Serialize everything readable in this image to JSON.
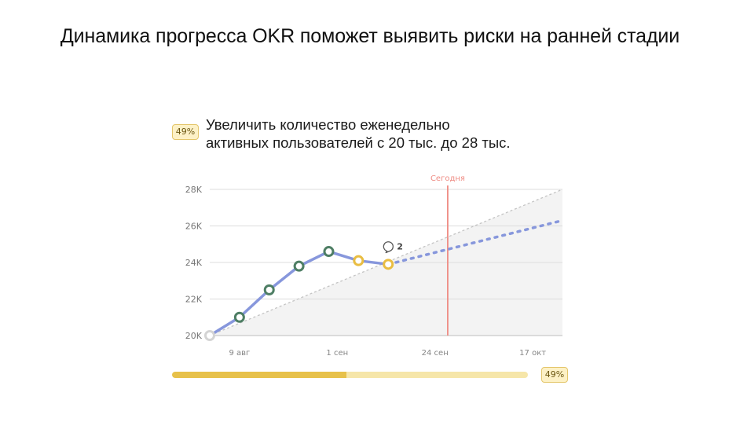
{
  "page_title": "Динамика прогресса OKR поможет выявить риски на ранней стадии",
  "okr": {
    "badge_top": "49%",
    "title_line1": "Увеличить количество еженедельно",
    "title_line2": "активных пользователей с 20 тыс. до 28 тыс.",
    "progress": {
      "fraction": 0.49,
      "label": "49%"
    }
  },
  "colors": {
    "actual_line": "#8797dc",
    "checkpoint_green": "#4e7e64",
    "checkpoint_yellow": "#e9bd42",
    "start_point": "#d4d4d4",
    "today_line": "#ef8c84",
    "plan_line": "#c4c4c4",
    "plan_area": "#f3f3f3",
    "grid": "#dcdcdc"
  },
  "chart_data": {
    "type": "line",
    "y_tick_labels": [
      "20K",
      "22K",
      "24K",
      "26K",
      "28K"
    ],
    "ylim": [
      20000,
      28000
    ],
    "x_tick_labels": [
      "9 авг",
      "1 сен",
      "24 сен",
      "17 окт"
    ],
    "x_tick_dates": [
      "2021-08-09",
      "2021-09-01",
      "2021-09-24",
      "2021-10-17"
    ],
    "xlim": [
      "2021-08-02",
      "2021-10-24"
    ],
    "grid": true,
    "today": {
      "label": "Сегодня",
      "date": "2021-09-27"
    },
    "plan": {
      "from": {
        "x": "2021-08-02",
        "y": 20000
      },
      "to": {
        "x": "2021-10-24",
        "y": 28000
      }
    },
    "actual": [
      {
        "x": "2021-08-02",
        "y": 20000,
        "status": "start"
      },
      {
        "x": "2021-08-09",
        "y": 21000,
        "status": "green"
      },
      {
        "x": "2021-08-16",
        "y": 22500,
        "status": "green"
      },
      {
        "x": "2021-08-23",
        "y": 23800,
        "status": "green"
      },
      {
        "x": "2021-08-30",
        "y": 24600,
        "status": "green"
      },
      {
        "x": "2021-09-06",
        "y": 24100,
        "status": "yellow"
      },
      {
        "x": "2021-09-13",
        "y": 23900,
        "status": "yellow"
      }
    ],
    "forecast": [
      {
        "x": "2021-09-13",
        "y": 23900
      },
      {
        "x": "2021-10-24",
        "y": 26300
      }
    ],
    "comment": {
      "x": "2021-09-13",
      "count": "2"
    }
  }
}
